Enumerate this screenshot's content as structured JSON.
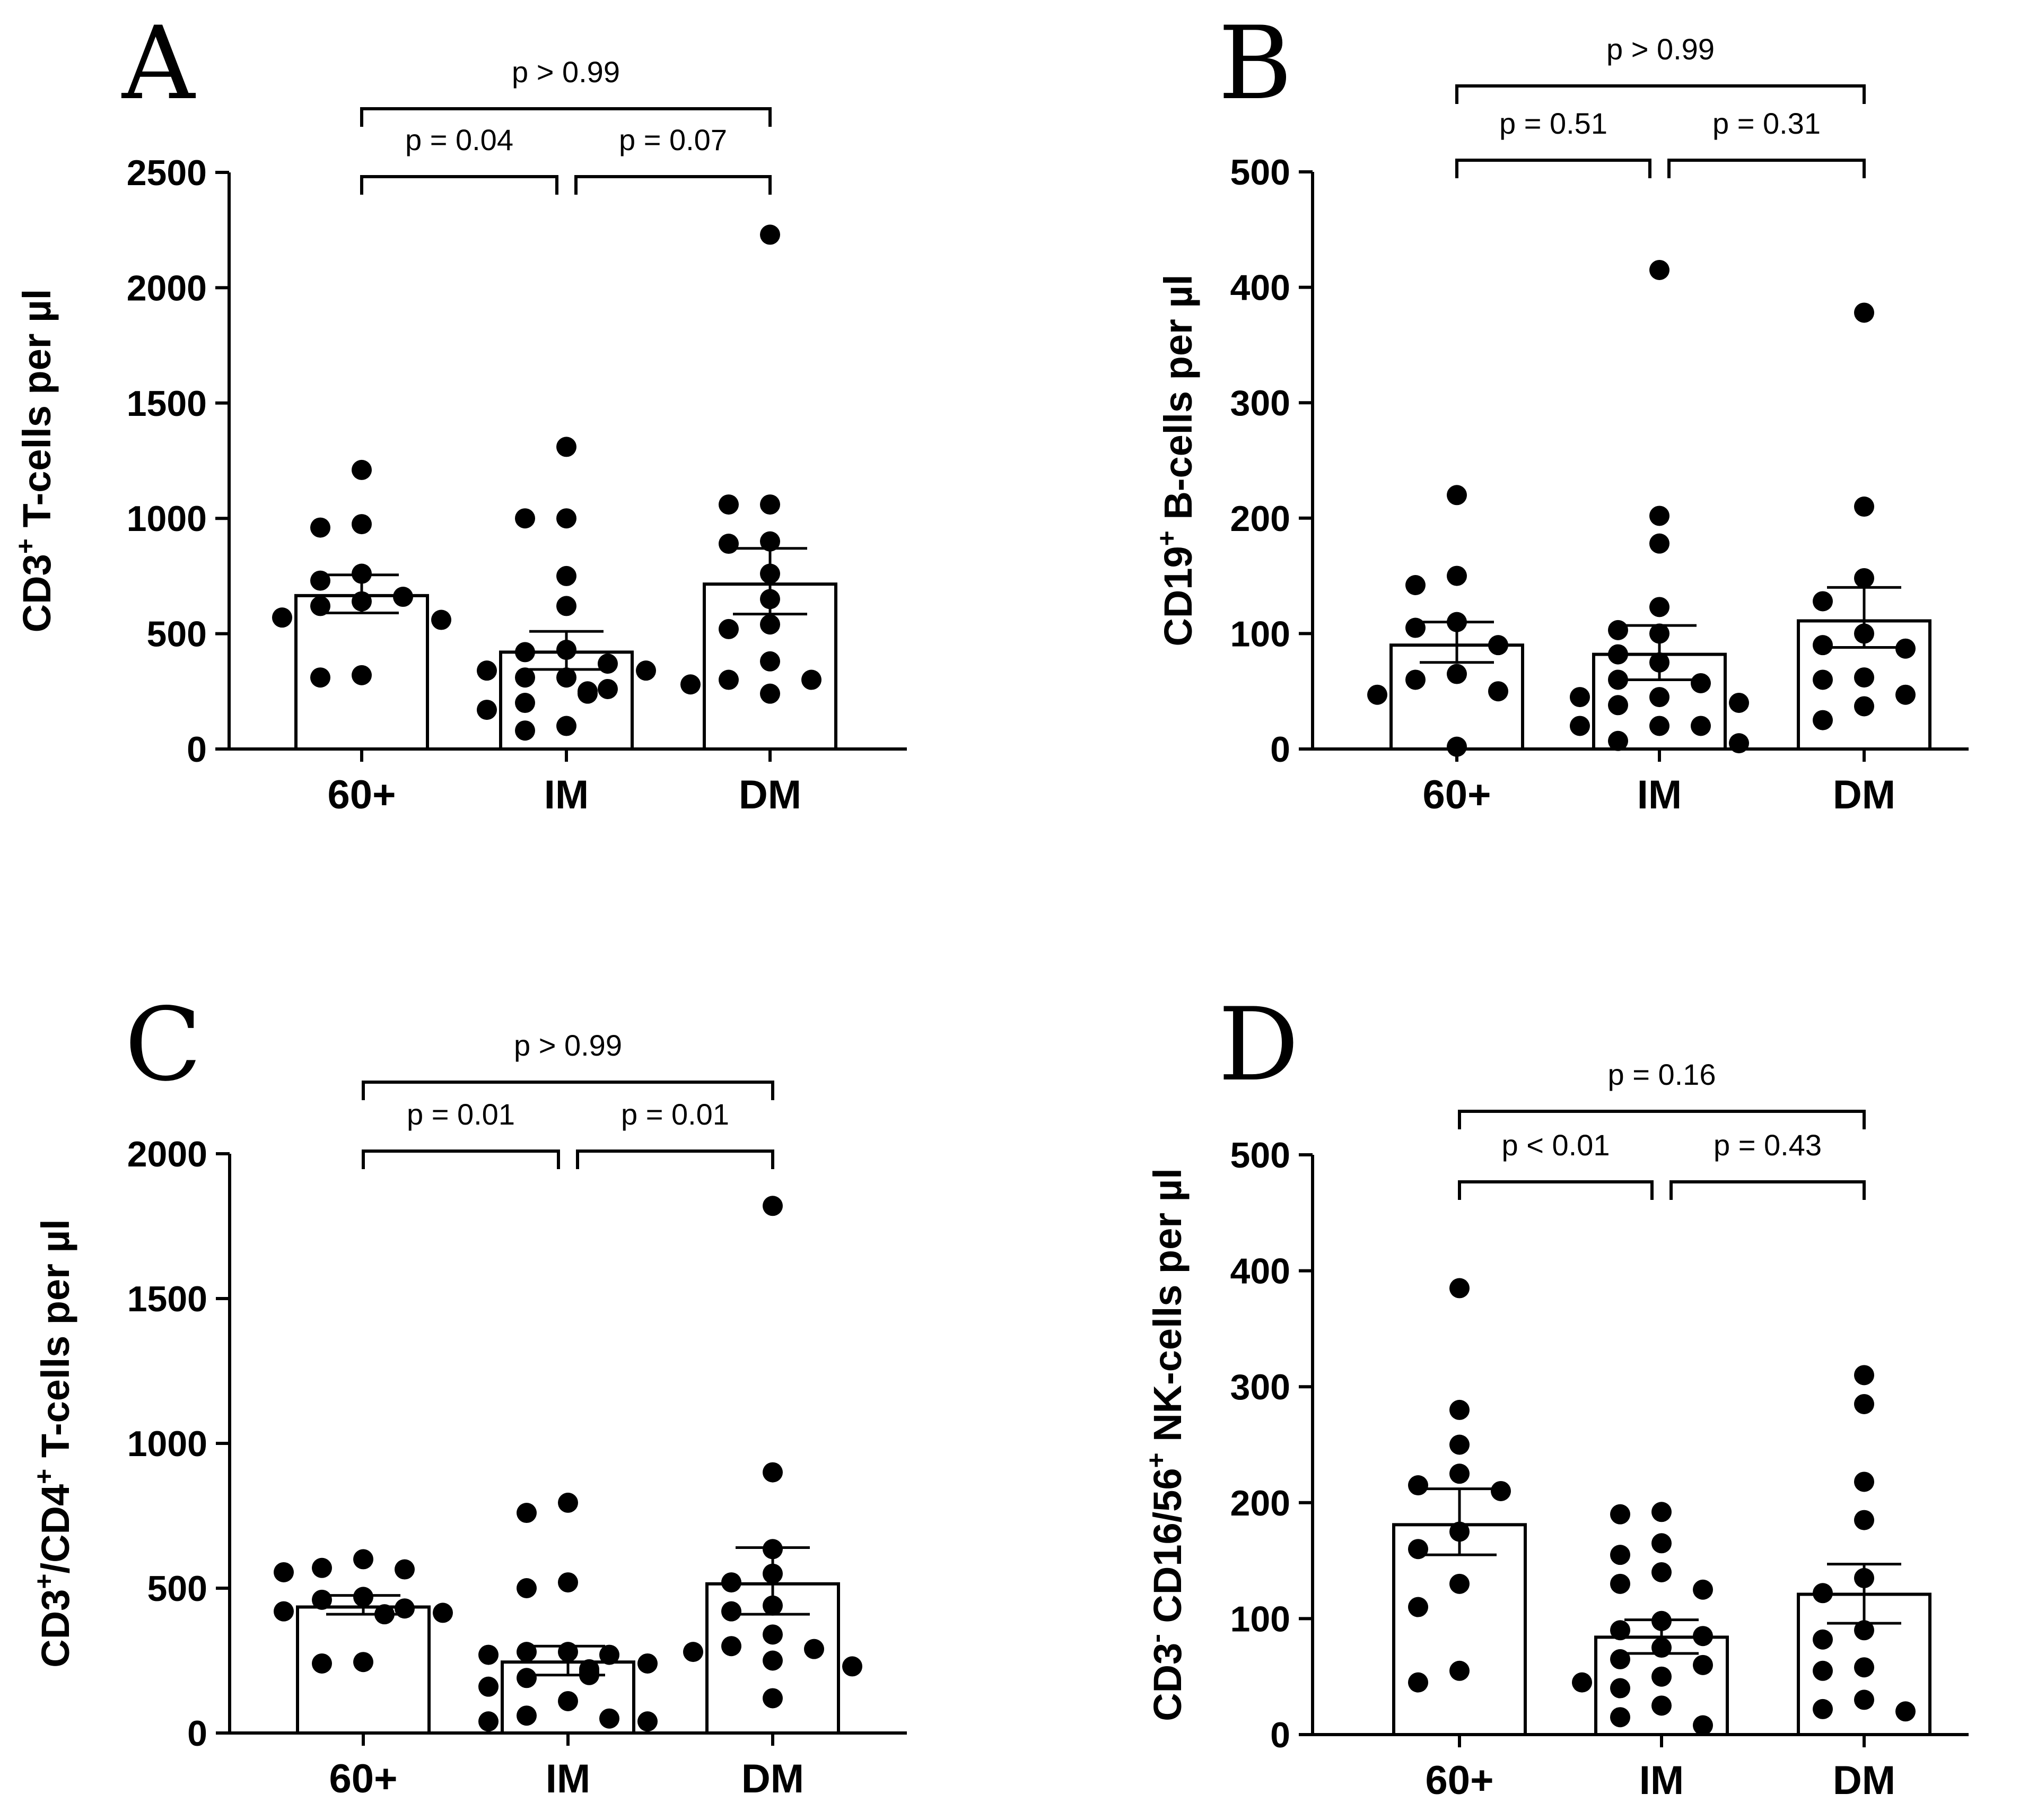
{
  "chart_data": [
    {
      "panel": "A",
      "type": "bar",
      "categories": [
        "60+",
        "IM",
        "DM"
      ],
      "ylabel": {
        "base": "CD3",
        "sup": "+",
        "rest": " T-cells per µl"
      },
      "ylim": [
        0,
        2500
      ],
      "yticks": [
        0,
        500,
        1000,
        1500,
        2000,
        2500
      ],
      "bars": [
        {
          "mean": 665,
          "sem_low": 590,
          "sem_high": 755
        },
        {
          "mean": 420,
          "sem_low": 345,
          "sem_high": 510
        },
        {
          "mean": 715,
          "sem_low": 585,
          "sem_high": 870
        }
      ],
      "points": [
        [
          1210,
          960,
          975,
          620,
          640,
          730,
          760,
          660,
          570,
          560,
          310,
          320
        ],
        [
          1310,
          1000,
          1000,
          750,
          620,
          420,
          430,
          370,
          340,
          340,
          310,
          310,
          260,
          250,
          240,
          200,
          170,
          100,
          80
        ],
        [
          2230,
          1060,
          1060,
          900,
          890,
          760,
          650,
          540,
          520,
          380,
          300,
          300,
          240,
          280
        ]
      ],
      "brackets": [
        {
          "from": 0,
          "to": 1,
          "label": "p = 0.04",
          "level": 1
        },
        {
          "from": 1,
          "to": 2,
          "label": "p = 0.07",
          "level": 1
        },
        {
          "from": 0,
          "to": 2,
          "label": "p > 0.99",
          "level": 2
        }
      ]
    },
    {
      "panel": "B",
      "type": "bar",
      "categories": [
        "60+",
        "IM",
        "DM"
      ],
      "ylabel": {
        "base": "CD19",
        "sup": "+",
        "rest": " B-cells per µl"
      },
      "ylim": [
        0,
        500
      ],
      "yticks": [
        0,
        100,
        200,
        300,
        400,
        500
      ],
      "bars": [
        {
          "mean": 90,
          "sem_low": 75,
          "sem_high": 110
        },
        {
          "mean": 82,
          "sem_low": 60,
          "sem_high": 107
        },
        {
          "mean": 111,
          "sem_low": 88,
          "sem_high": 140
        }
      ],
      "points": [
        [
          220,
          150,
          142,
          110,
          105,
          90,
          65,
          60,
          50,
          47,
          2
        ],
        [
          415,
          202,
          178,
          123,
          103,
          100,
          82,
          75,
          60,
          57,
          45,
          45,
          40,
          38,
          20,
          20,
          20,
          7,
          5
        ],
        [
          378,
          210,
          148,
          128,
          100,
          90,
          87,
          62,
          60,
          47,
          37,
          25
        ]
      ],
      "brackets": [
        {
          "from": 0,
          "to": 1,
          "label": "p = 0.51",
          "level": 1
        },
        {
          "from": 1,
          "to": 2,
          "label": "p = 0.31",
          "level": 1
        },
        {
          "from": 0,
          "to": 2,
          "label": "p > 0.99",
          "level": 2
        }
      ]
    },
    {
      "panel": "C",
      "type": "bar",
      "categories": [
        "60+",
        "IM",
        "DM"
      ],
      "ylabel": {
        "base": "CD3",
        "sup": "+",
        "mid": "/CD4",
        "sup2": "+",
        "rest": " T-cells per µl"
      },
      "ylim": [
        0,
        2000
      ],
      "yticks": [
        0,
        500,
        1000,
        1500,
        2000
      ],
      "bars": [
        {
          "mean": 435,
          "sem_low": 410,
          "sem_high": 475
        },
        {
          "mean": 245,
          "sem_low": 200,
          "sem_high": 300
        },
        {
          "mean": 515,
          "sem_low": 410,
          "sem_high": 640
        }
      ],
      "points": [
        [
          600,
          570,
          565,
          555,
          470,
          460,
          430,
          420,
          415,
          410,
          240,
          245
        ],
        [
          795,
          760,
          520,
          500,
          280,
          280,
          270,
          270,
          240,
          220,
          210,
          200,
          190,
          160,
          110,
          60,
          50,
          40,
          40
        ],
        [
          1820,
          900,
          635,
          550,
          520,
          440,
          420,
          340,
          290,
          300,
          280,
          250,
          230,
          120
        ]
      ],
      "brackets": [
        {
          "from": 0,
          "to": 1,
          "label": "p = 0.01",
          "level": 1
        },
        {
          "from": 1,
          "to": 2,
          "label": "p = 0.01",
          "level": 1
        },
        {
          "from": 0,
          "to": 2,
          "label": "p > 0.99",
          "level": 2
        }
      ]
    },
    {
      "panel": "D",
      "type": "bar",
      "categories": [
        "60+",
        "IM",
        "DM"
      ],
      "ylabel": {
        "base": "CD3",
        "sup": "-",
        "mid": " CD16/56",
        "sup2": "+",
        "rest": " NK-cells per µl"
      },
      "ylim": [
        0,
        500
      ],
      "yticks": [
        0,
        100,
        200,
        300,
        400,
        500
      ],
      "bars": [
        {
          "mean": 181,
          "sem_low": 155,
          "sem_high": 212
        },
        {
          "mean": 84,
          "sem_low": 70,
          "sem_high": 99
        },
        {
          "mean": 121,
          "sem_low": 96,
          "sem_high": 147
        }
      ],
      "points": [
        [
          385,
          280,
          250,
          225,
          215,
          210,
          175,
          160,
          130,
          110,
          55,
          45
        ],
        [
          192,
          190,
          165,
          155,
          140,
          130,
          125,
          98,
          90,
          85,
          75,
          65,
          60,
          50,
          45,
          40,
          25,
          15,
          8
        ],
        [
          310,
          285,
          218,
          185,
          135,
          122,
          90,
          82,
          58,
          55,
          30,
          22,
          20
        ]
      ],
      "brackets": [
        {
          "from": 0,
          "to": 1,
          "label": "p < 0.01",
          "level": 1
        },
        {
          "from": 1,
          "to": 2,
          "label": "p = 0.43",
          "level": 1
        },
        {
          "from": 0,
          "to": 2,
          "label": "p = 0.16",
          "level": 2
        }
      ]
    }
  ]
}
